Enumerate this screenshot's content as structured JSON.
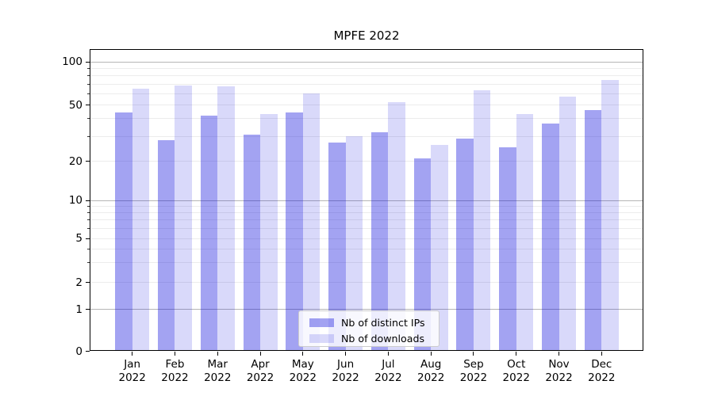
{
  "title": "MPFE 2022",
  "chart_data": {
    "type": "bar",
    "title": "MPFE 2022",
    "categories": [
      "Jan 2022",
      "Feb 2022",
      "Mar 2022",
      "Apr 2022",
      "May 2022",
      "Jun 2022",
      "Jul 2022",
      "Aug 2022",
      "Sep 2022",
      "Oct 2022",
      "Nov 2022",
      "Dec 2022"
    ],
    "series": [
      {
        "name": "Nb of distinct IPs",
        "values": [
          44,
          28,
          42,
          31,
          44,
          27,
          32,
          21,
          29,
          25,
          37,
          46
        ]
      },
      {
        "name": "Nb of downloads",
        "values": [
          65,
          68,
          67,
          43,
          60,
          30,
          52,
          26,
          63,
          43,
          57,
          75
        ]
      }
    ],
    "xlabel": "",
    "ylabel": "",
    "yscale": "log-like (compressed toward zero, 0 shown at baseline)",
    "yticks": [
      0,
      1,
      2,
      5,
      10,
      20,
      50,
      100
    ],
    "yticks_minor": [
      3,
      4,
      6,
      7,
      8,
      9,
      30,
      40,
      60,
      70,
      80,
      90
    ],
    "ylim": [
      0,
      122
    ],
    "grid": "on",
    "legend_position": "lower center"
  },
  "colors": {
    "bar_distinct_ips": "rgba(0,0,220,0.36)",
    "bar_downloads": "rgba(0,0,220,0.15)",
    "grid_major": "#b6b6b6",
    "grid_minor": "#ececec",
    "axis_frame": "#000000",
    "legend_border": "#cccccc"
  },
  "legend": {
    "items": [
      {
        "label": "Nb of distinct IPs"
      },
      {
        "label": "Nb of downloads"
      }
    ]
  }
}
